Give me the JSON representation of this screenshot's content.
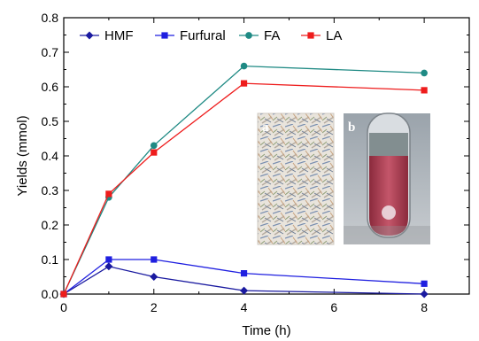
{
  "chart_data": {
    "type": "line",
    "xlabel": "Time (h)",
    "ylabel": "Yields (mmol)",
    "xlim": [
      0,
      9
    ],
    "ylim": [
      0,
      0.8
    ],
    "xticks": [
      0,
      2,
      4,
      6,
      8
    ],
    "yticks": [
      0.0,
      0.1,
      0.2,
      0.3,
      0.4,
      0.5,
      0.6,
      0.7,
      0.8
    ],
    "xtick_labels": [
      "0",
      "2",
      "4",
      "6",
      "8"
    ],
    "ytick_labels": [
      "0.0",
      "0.1",
      "0.2",
      "0.3",
      "0.4",
      "0.5",
      "0.6",
      "0.7",
      "0.8"
    ],
    "grid": false,
    "legend_position": "top",
    "series": [
      {
        "name": "HMF",
        "color": "#1a1aa0",
        "marker": "diamond",
        "x": [
          0,
          1,
          2,
          4,
          8
        ],
        "y": [
          0,
          0.08,
          0.05,
          0.01,
          0.0
        ]
      },
      {
        "name": "Furfural",
        "color": "#1f1fe0",
        "marker": "square",
        "x": [
          0,
          1,
          2,
          4,
          8
        ],
        "y": [
          0,
          0.1,
          0.1,
          0.06,
          0.03
        ]
      },
      {
        "name": "FA",
        "color": "#1f8a84",
        "marker": "circle",
        "x": [
          0,
          1,
          2,
          4,
          8
        ],
        "y": [
          0,
          0.28,
          0.43,
          0.66,
          0.64
        ]
      },
      {
        "name": "LA",
        "color": "#ee1c1c",
        "marker": "square",
        "x": [
          0,
          1,
          2,
          4,
          8
        ],
        "y": [
          0,
          0.29,
          0.41,
          0.61,
          0.59
        ]
      }
    ],
    "inset_photos": [
      {
        "label": "a",
        "icon": "shredded-paper-photo"
      },
      {
        "label": "b",
        "icon": "test-tube-photo"
      }
    ]
  }
}
